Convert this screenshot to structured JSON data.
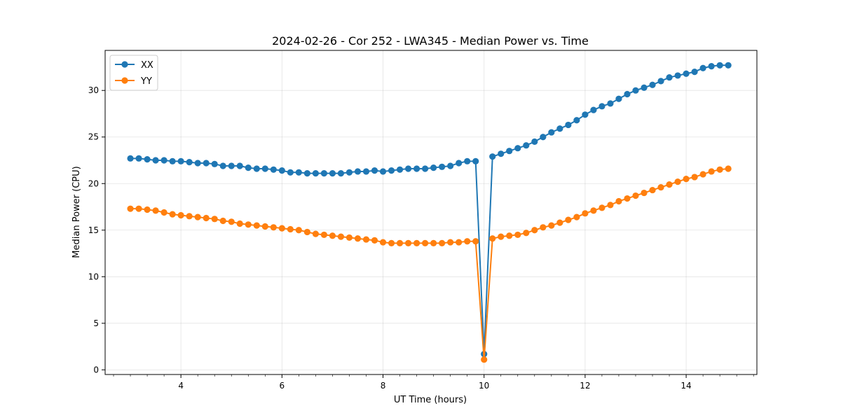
{
  "chart_data": {
    "type": "line",
    "title": "2024-02-26 - Cor 252 - LWA345 - Median Power vs. Time",
    "xlabel": "UT Time (hours)",
    "ylabel": "Median Power (CPU)",
    "xlim": [
      2.5,
      15.4
    ],
    "ylim": [
      -0.5,
      34.3
    ],
    "xticks": [
      4,
      6,
      8,
      10,
      12,
      14
    ],
    "yticks": [
      0,
      5,
      10,
      15,
      20,
      25,
      30
    ],
    "x_minor_step": 0.333333,
    "grid": true,
    "legend_position": "upper-left",
    "x": [
      3.0,
      3.1667,
      3.3333,
      3.5,
      3.6667,
      3.8333,
      4.0,
      4.1667,
      4.3333,
      4.5,
      4.6667,
      4.8333,
      5.0,
      5.1667,
      5.3333,
      5.5,
      5.6667,
      5.8333,
      6.0,
      6.1667,
      6.3333,
      6.5,
      6.6667,
      6.8333,
      7.0,
      7.1667,
      7.3333,
      7.5,
      7.6667,
      7.8333,
      8.0,
      8.1667,
      8.3333,
      8.5,
      8.6667,
      8.8333,
      9.0,
      9.1667,
      9.3333,
      9.5,
      9.6667,
      9.8333,
      10.0,
      10.1667,
      10.3333,
      10.5,
      10.6667,
      10.8333,
      11.0,
      11.1667,
      11.3333,
      11.5,
      11.6667,
      11.8333,
      12.0,
      12.1667,
      12.3333,
      12.5,
      12.6667,
      12.8333,
      13.0,
      13.1667,
      13.3333,
      13.5,
      13.6667,
      13.8333,
      14.0,
      14.1667,
      14.3333,
      14.5,
      14.6667,
      14.8333
    ],
    "series": [
      {
        "name": "XX",
        "color": "#1f77b4",
        "values": [
          22.7,
          22.7,
          22.6,
          22.5,
          22.5,
          22.4,
          22.4,
          22.3,
          22.2,
          22.2,
          22.1,
          21.9,
          21.9,
          21.9,
          21.7,
          21.6,
          21.6,
          21.5,
          21.4,
          21.2,
          21.2,
          21.1,
          21.1,
          21.1,
          21.1,
          21.1,
          21.2,
          21.3,
          21.3,
          21.4,
          21.3,
          21.4,
          21.5,
          21.6,
          21.6,
          21.6,
          21.7,
          21.8,
          21.9,
          22.2,
          22.4,
          22.4,
          1.7,
          22.9,
          23.2,
          23.5,
          23.8,
          24.1,
          24.5,
          25.0,
          25.5,
          25.9,
          26.3,
          26.8,
          27.4,
          27.9,
          28.3,
          28.6,
          29.1,
          29.6,
          30.0,
          30.3,
          30.6,
          31.0,
          31.4,
          31.6,
          31.8,
          32.0,
          32.4,
          32.6,
          32.7,
          32.7
        ]
      },
      {
        "name": "YY",
        "color": "#ff7f0e",
        "values": [
          17.3,
          17.3,
          17.2,
          17.1,
          16.9,
          16.7,
          16.6,
          16.5,
          16.4,
          16.3,
          16.2,
          16.0,
          15.9,
          15.7,
          15.6,
          15.5,
          15.4,
          15.3,
          15.2,
          15.1,
          15.0,
          14.8,
          14.6,
          14.5,
          14.4,
          14.3,
          14.2,
          14.1,
          14.0,
          13.9,
          13.7,
          13.6,
          13.6,
          13.6,
          13.6,
          13.6,
          13.6,
          13.6,
          13.7,
          13.7,
          13.8,
          13.8,
          1.1,
          14.1,
          14.3,
          14.4,
          14.5,
          14.7,
          15.0,
          15.3,
          15.5,
          15.8,
          16.1,
          16.4,
          16.8,
          17.1,
          17.4,
          17.7,
          18.1,
          18.4,
          18.7,
          19.0,
          19.3,
          19.6,
          19.9,
          20.2,
          20.5,
          20.7,
          21.0,
          21.3,
          21.5,
          21.6
        ]
      }
    ]
  }
}
